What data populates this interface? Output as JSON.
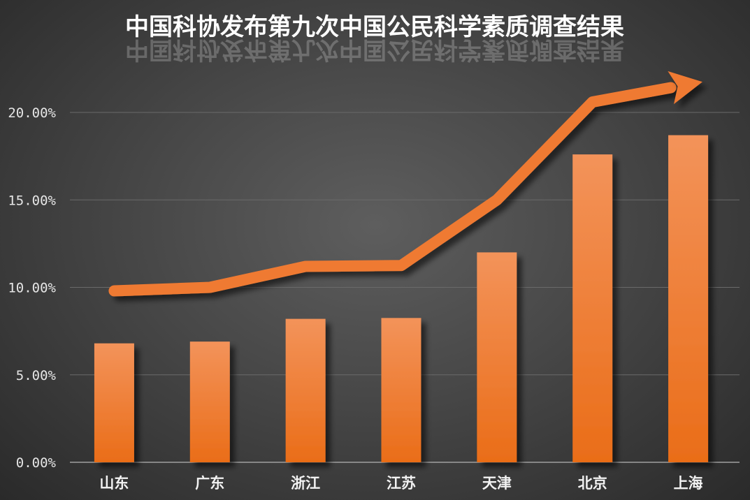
{
  "chart_data": {
    "type": "bar",
    "title": "中国科协发布第九次中国公民科学素质调查结果",
    "categories": [
      "山东",
      "广东",
      "浙江",
      "江苏",
      "天津",
      "北京",
      "上海"
    ],
    "values": [
      6.8,
      6.9,
      8.2,
      8.25,
      12.0,
      17.6,
      18.7
    ],
    "trend_line": [
      9.8,
      10.0,
      11.2,
      11.25,
      15.0,
      20.6,
      21.6
    ],
    "ylim": [
      0,
      20
    ],
    "yticks": [
      "0.00%",
      "5.00%",
      "10.00%",
      "15.00%",
      "20.00%"
    ],
    "ytick_values": [
      0,
      5,
      10,
      15,
      20
    ],
    "xlabel": "",
    "ylabel": "",
    "grid": true,
    "colors": {
      "bar_top": "#f3935a",
      "bar_bottom": "#ea6d18",
      "arrow": "#ef7a33"
    }
  }
}
